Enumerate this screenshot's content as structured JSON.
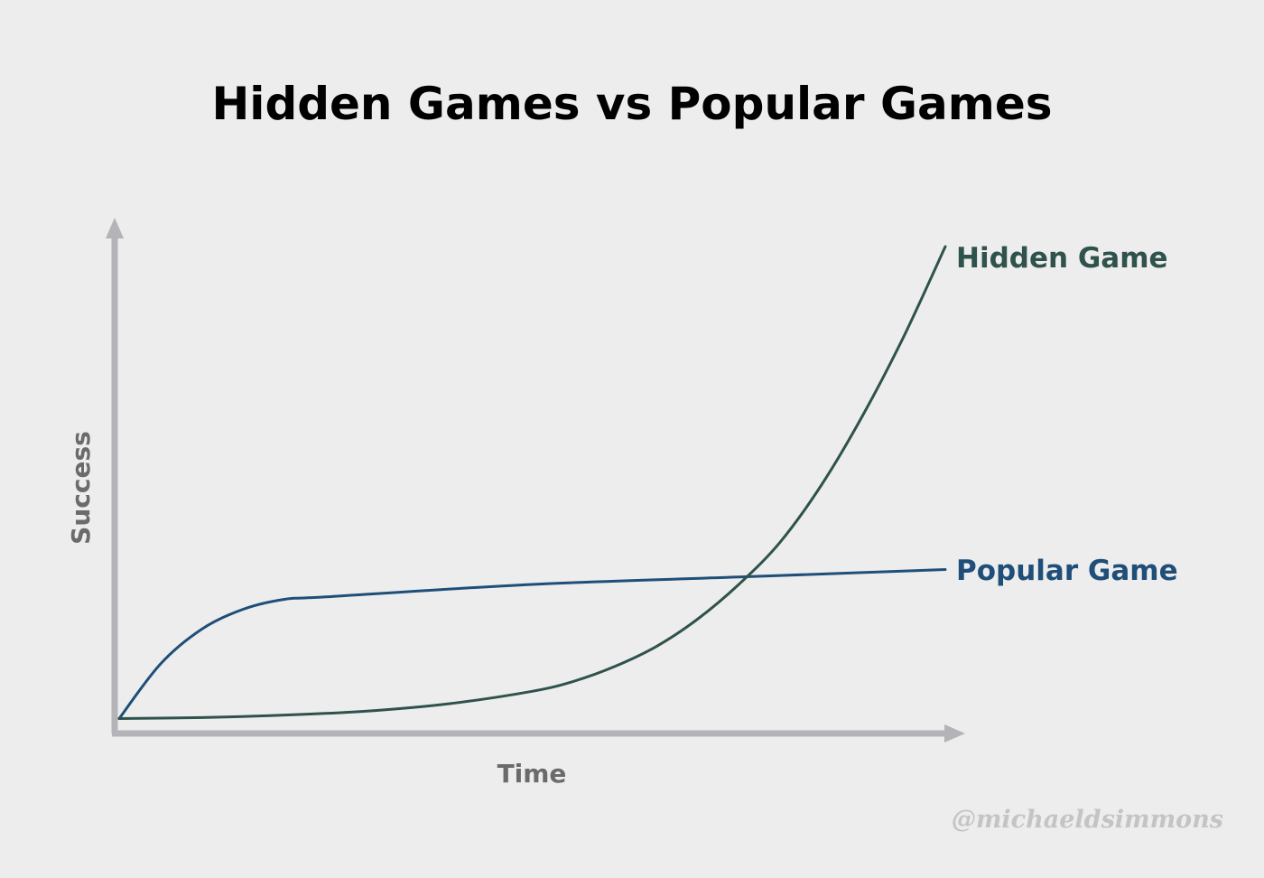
{
  "chart_data": {
    "type": "line",
    "title": "Hidden Games vs Popular Games",
    "xlabel": "Time",
    "ylabel": "Success",
    "xlim": [
      0,
      100
    ],
    "ylim": [
      0,
      100
    ],
    "grid": false,
    "legend": "inline-right",
    "series": [
      {
        "name": "Popular Game",
        "color": "#1f4e79",
        "x": [
          0,
          5,
          10,
          15,
          20,
          25,
          50,
          75,
          100
        ],
        "y": [
          3,
          14,
          21,
          25,
          27,
          27.5,
          30,
          31.5,
          33
        ]
      },
      {
        "name": "Hidden Game",
        "color": "#2f524c",
        "x": [
          0,
          10,
          20,
          30,
          40,
          50,
          55,
          60,
          65,
          70,
          75,
          80,
          85,
          90,
          95,
          100
        ],
        "y": [
          3,
          3.2,
          3.7,
          4.5,
          6,
          8.5,
          10.5,
          13.5,
          17.5,
          23,
          30,
          38.5,
          50,
          64,
          80,
          98
        ]
      }
    ],
    "axis_color": "#b3b3b8",
    "watermark": "@michaeldsimmons"
  }
}
